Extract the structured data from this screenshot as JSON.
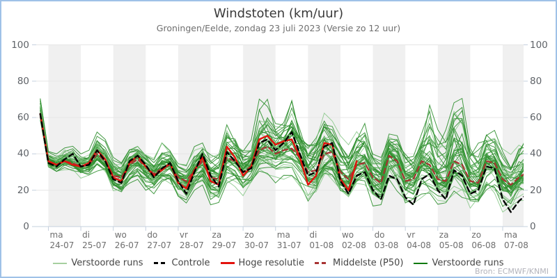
{
  "header": {
    "title": "Windstoten (km/uur)",
    "subtitle": "Groningen/Eelde, zondag 23 juli 2023 (Versie zo 12 uur)"
  },
  "source": "Bron: ECMWF/KNMI",
  "colors": {
    "border": "#9fc1e7",
    "band": "#f0f0f0",
    "grid": "#e6e6e6",
    "axis": "#c5d0de",
    "control": "#000000",
    "hires": "#e3120d",
    "p50": "#a83333",
    "member_light": "#7fc47f",
    "member_dark": "#2f8f2f",
    "legend_light_green": "#a6cf9f",
    "legend_dark_green": "#0e7a0e"
  },
  "legend": [
    {
      "label": "Verstoorde runs",
      "color": "#a6cf9f",
      "style": "solid",
      "thickness": 2
    },
    {
      "label": "Controle",
      "color": "#000000",
      "style": "dashed",
      "thickness": 3
    },
    {
      "label": "Hoge resolutie",
      "color": "#e3120d",
      "style": "solid",
      "thickness": 3
    },
    {
      "label": "Middelste (P50)",
      "color": "#a83333",
      "style": "dashed",
      "thickness": 3
    },
    {
      "label": "Verstoorde runs",
      "color": "#0e7a0e",
      "style": "solid",
      "thickness": 2
    }
  ],
  "y_axis": {
    "min": 0,
    "max": 100,
    "ticks": [
      0,
      20,
      40,
      60,
      80,
      100
    ]
  },
  "x_axis": {
    "days": [
      {
        "dow": "ma",
        "date": "24-07"
      },
      {
        "dow": "di",
        "date": "25-07"
      },
      {
        "dow": "wo",
        "date": "26-07"
      },
      {
        "dow": "do",
        "date": "27-07"
      },
      {
        "dow": "vr",
        "date": "28-07"
      },
      {
        "dow": "za",
        "date": "29-07"
      },
      {
        "dow": "zo",
        "date": "30-07"
      },
      {
        "dow": "ma",
        "date": "31-07"
      },
      {
        "dow": "di",
        "date": "01-08"
      },
      {
        "dow": "wo",
        "date": "02-08"
      },
      {
        "dow": "do",
        "date": "03-08"
      },
      {
        "dow": "vr",
        "date": "04-08"
      },
      {
        "dow": "za",
        "date": "05-08"
      },
      {
        "dow": "zo",
        "date": "06-08"
      },
      {
        "dow": "ma",
        "date": "07-08"
      }
    ]
  },
  "chart_data": {
    "type": "line",
    "title": "Windstoten (km/uur)",
    "unit": "km/uur",
    "time_start": "zo 23-07 18:00",
    "time_step_hours": 6,
    "ylim": [
      0,
      100
    ],
    "grid": true,
    "legend_position": "bottom",
    "series": [
      {
        "name": "Controle",
        "style": "dashed",
        "color": "#000000",
        "values": [
          62,
          35,
          33,
          37,
          40,
          33,
          34,
          42,
          36,
          26,
          24,
          36,
          39,
          34,
          27,
          32,
          35,
          25,
          18,
          30,
          40,
          28,
          22,
          41,
          36,
          30,
          32,
          46,
          48,
          42,
          46,
          52,
          40,
          28,
          30,
          44,
          46,
          25,
          18,
          28,
          30,
          20,
          15,
          28,
          26,
          16,
          12,
          26,
          29,
          20,
          15,
          31,
          28,
          18,
          20,
          33,
          32,
          15,
          8,
          14,
          18
        ]
      },
      {
        "name": "Hoge resolutie",
        "style": "solid",
        "color": "#e3120d",
        "values": [
          62,
          36,
          34,
          36,
          34,
          33,
          35,
          42,
          37,
          27,
          25,
          35,
          39,
          33,
          28,
          31,
          35,
          24,
          21,
          31,
          38,
          25,
          23,
          44,
          38,
          28,
          33,
          48,
          50,
          45,
          47,
          48,
          38,
          23,
          28,
          46,
          45,
          26,
          20,
          36
        ]
      },
      {
        "name": "Middelste (P50)",
        "style": "dashed",
        "color": "#a83333",
        "values": [
          62,
          36,
          34,
          36,
          35,
          33,
          34,
          40,
          36,
          28,
          27,
          34,
          37,
          33,
          29,
          32,
          34,
          27,
          25,
          31,
          36,
          27,
          26,
          38,
          36,
          30,
          33,
          42,
          44,
          40,
          42,
          43,
          38,
          30,
          31,
          40,
          41,
          30,
          26,
          34,
          35,
          27,
          24,
          39,
          36,
          25,
          26,
          36,
          34,
          26,
          25,
          36,
          34,
          25,
          24,
          36,
          35,
          26,
          23,
          27,
          30
        ]
      }
    ],
    "ensemble": {
      "name": "Verstoorde runs",
      "n_members": 48,
      "envelope_min": [
        57,
        30,
        28,
        30,
        30,
        26,
        25,
        30,
        28,
        18,
        16,
        22,
        26,
        20,
        18,
        24,
        22,
        14,
        12,
        20,
        22,
        12,
        12,
        24,
        22,
        16,
        20,
        28,
        28,
        24,
        26,
        28,
        22,
        14,
        16,
        22,
        20,
        12,
        10,
        18,
        20,
        10,
        8,
        16,
        14,
        8,
        8,
        15,
        15,
        12,
        12,
        18,
        16,
        10,
        12,
        20,
        18,
        8,
        8,
        14,
        12
      ],
      "envelope_max": [
        75,
        42,
        40,
        44,
        45,
        40,
        42,
        52,
        48,
        38,
        36,
        44,
        46,
        42,
        38,
        46,
        44,
        36,
        34,
        44,
        46,
        40,
        42,
        56,
        52,
        46,
        52,
        72,
        70,
        60,
        62,
        77,
        60,
        50,
        55,
        66,
        58,
        50,
        45,
        55,
        58,
        42,
        38,
        52,
        50,
        42,
        40,
        52,
        75,
        55,
        60,
        80,
        78,
        48,
        50,
        58,
        55,
        45,
        42,
        52,
        58
      ]
    }
  }
}
